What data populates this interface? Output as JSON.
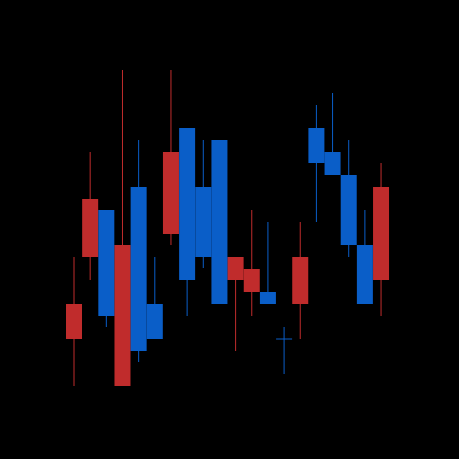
{
  "chart_data": {
    "type": "candlestick",
    "ylim": [
      0,
      459
    ],
    "up_color": "#0a5ec8",
    "down_color": "#c02c2c",
    "background": "#000000",
    "open": [
      155,
      260,
      143,
      214,
      108,
      120,
      307,
      179,
      202,
      155,
      202,
      190,
      155,
      120,
      202,
      296,
      284,
      214,
      155,
      272
    ],
    "high": [
      202,
      307,
      249,
      389,
      319,
      202,
      389,
      331,
      319,
      319,
      202,
      249,
      237,
      132,
      237,
      354,
      366,
      319,
      249,
      296
    ],
    "low": [
      73,
      179,
      132,
      73,
      97,
      120,
      214,
      143,
      191,
      155,
      108,
      143,
      155,
      85,
      120,
      237,
      284,
      202,
      155,
      143
    ],
    "close": [
      120,
      202,
      249,
      73,
      272,
      155,
      225,
      331,
      272,
      319,
      179,
      167,
      167,
      120,
      155,
      331,
      307,
      284,
      214,
      179
    ]
  }
}
